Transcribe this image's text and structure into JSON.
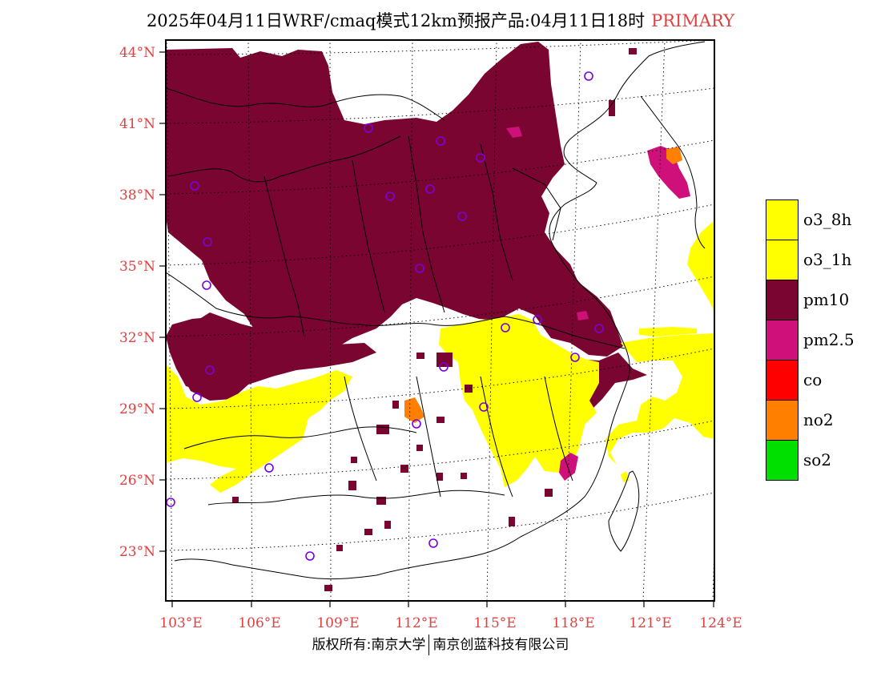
{
  "title": {
    "text": "2025年04月11日WRF/cmaq模式12km预报产品:04月11日18时",
    "tag": "PRIMARY"
  },
  "map": {
    "lat_labels": [
      "44°N",
      "41°N",
      "38°N",
      "35°N",
      "32°N",
      "29°N",
      "26°N",
      "23°N"
    ],
    "lon_labels": [
      "103°E",
      "106°E",
      "109°E",
      "112°E",
      "115°E",
      "118°E",
      "121°E",
      "124°E"
    ],
    "label_color": "#e04040",
    "colors": {
      "pm10": "#7a0530",
      "o3": "#ffff00",
      "pm25": "#d0107a",
      "no2": "#ff8000"
    }
  },
  "legend": [
    {
      "label": "o3_8h",
      "color": "#ffff00"
    },
    {
      "label": "o3_1h",
      "color": "#ffff00"
    },
    {
      "label": "pm10",
      "color": "#7a0530"
    },
    {
      "label": "pm2.5",
      "color": "#d0107a"
    },
    {
      "label": "co",
      "color": "#ff0000"
    },
    {
      "label": "no2",
      "color": "#ff8000"
    },
    {
      "label": "so2",
      "color": "#00e000"
    }
  ],
  "copyright": {
    "left": "版权所有:南京大学",
    "right": "南京创蓝科技有限公司"
  }
}
